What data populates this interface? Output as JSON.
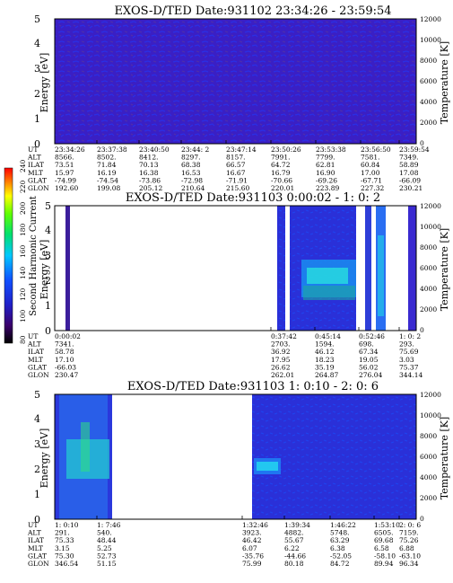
{
  "panels": [
    {
      "title": "EXOS-D/TED   Date:931102  23:34:26 - 23:59:54",
      "y_left_label": "Energy [eV]",
      "y_left_ticks": [
        "0",
        "1",
        "2",
        "3",
        "4",
        "5"
      ],
      "y_right_label": "Temperature [K]",
      "y_right_ticks": [
        "0",
        "2000",
        "4000",
        "6000",
        "8000",
        "10000",
        "12000"
      ],
      "footer_labels": [
        "UT",
        "ALT",
        "ILAT",
        "MLT",
        "GLAT",
        "GLON"
      ],
      "footer_cols": [
        [
          "23:34:26",
          "8566.",
          "73.51",
          "15.97",
          "-74.99",
          "192.60"
        ],
        [
          "23:37:38",
          "8502.",
          "71.84",
          "16.19",
          "-74.54",
          "199.08"
        ],
        [
          "23:40:50",
          "8412.",
          "70.13",
          "16.38",
          "-73.86",
          "205.12"
        ],
        [
          "23:44: 2",
          "8297.",
          "68.38",
          "16.53",
          "-72.98",
          "210.64"
        ],
        [
          "23:47:14",
          "8157.",
          "66.57",
          "16.67",
          "-71.91",
          "215.60"
        ],
        [
          "23:50:26",
          "7991.",
          "64.72",
          "16.79",
          "-70.66",
          "220.01"
        ],
        [
          "23:53:38",
          "7799.",
          "62.81",
          "16.90",
          "-69.26",
          "223.89"
        ],
        [
          "23:56:50",
          "7581.",
          "60.84",
          "17.00",
          "-67.71",
          "227.32"
        ],
        [
          "23:59:54",
          "7349.",
          "58.89",
          "17.08",
          "-66.09",
          "230.21"
        ]
      ]
    },
    {
      "title": "EXOS-D/TED   Date:931103  0:00:02 - 1: 0: 2",
      "y_left_label": "Energy [eV]",
      "y_left_ticks": [
        "0",
        "1",
        "2",
        "3",
        "4",
        "5"
      ],
      "y_right_label": "Temperature [K]",
      "y_right_ticks": [
        "0",
        "2000",
        "4000",
        "6000",
        "8000",
        "10000",
        "12000"
      ],
      "footer_labels": [
        "UT",
        "ALT",
        "ILAT",
        "MLT",
        "GLAT",
        "GLON"
      ],
      "footer_cols": [
        [
          "0:00:02",
          "7341.",
          "58.78",
          "17.10",
          "-66.03",
          "230.47"
        ],
        [
          "0:37:42",
          "2703.",
          "36.92",
          "17.95",
          "26.62",
          "262.01"
        ],
        [
          "0:45:14",
          "1594.",
          "46.12",
          "18.23",
          "35.19",
          "264.87"
        ],
        [
          "0:52:46",
          "698.",
          "67.34",
          "19.05",
          "56.02",
          "276.04"
        ],
        [
          "1: 0: 2",
          "293.",
          "75.69",
          "3.03",
          "75.37",
          "344.14"
        ]
      ]
    },
    {
      "title": "EXOS-D/TED   Date:931103  1: 0:10 - 2: 0: 6",
      "y_left_label": "Energy [eV]",
      "y_left_ticks": [
        "0",
        "1",
        "2",
        "3",
        "4",
        "5"
      ],
      "y_right_label": "Temperature [K]",
      "y_right_ticks": [
        "0",
        "2000",
        "4000",
        "6000",
        "8000",
        "10000",
        "12000"
      ],
      "footer_labels": [
        "UT",
        "ALT",
        "ILAT",
        "MLT",
        "GLAT",
        "GLON"
      ],
      "footer_cols": [
        [
          "1: 0:10",
          "291.",
          "75.33",
          "3.15",
          "75.30",
          "346.54"
        ],
        [
          "1: 7:46",
          "540.",
          "48.44",
          "5.25",
          "52.73",
          "51.15"
        ],
        [
          "1:32:46",
          "3923.",
          "46.42",
          "6.07",
          "-35.76",
          "75.99"
        ],
        [
          "1:39:34",
          "4882.",
          "55.67",
          "6.22",
          "-44.66",
          "80.18"
        ],
        [
          "1:46:22",
          "5748.",
          "63.29",
          "6.38",
          "-52.05",
          "84.72"
        ],
        [
          "1:53:10",
          "6505.",
          "69.68",
          "6.58",
          "-58.10",
          "89.94"
        ],
        [
          "2: 0: 6",
          "7159.",
          "75.26",
          "6.88",
          "-63.10",
          "96.34"
        ]
      ]
    }
  ],
  "colorbar": {
    "label": "Second Harmonic Current",
    "ticks": [
      "80",
      "100",
      "120",
      "140",
      "160",
      "180",
      "200",
      "220",
      "240"
    ]
  },
  "chart_data": [
    {
      "type": "heatmap",
      "title": "EXOS-D/TED   Date:931102  23:34:26 - 23:59:54",
      "x_ticks": [
        "23:34:26",
        "23:37:38",
        "23:40:50",
        "23:44: 2",
        "23:47:14",
        "23:50:26",
        "23:53:38",
        "23:56:50",
        "23:59:54"
      ],
      "ylabel": "Energy [eV]",
      "ylim": [
        0,
        5
      ],
      "ylabel_right": "Temperature [K]",
      "ylim_right": [
        0,
        12000
      ],
      "color_label": "Second Harmonic Current",
      "color_range": [
        80,
        240
      ],
      "data_coverage": "continuous",
      "dominant_level": "low (dark blue)"
    },
    {
      "type": "heatmap",
      "title": "EXOS-D/TED   Date:931103  0:00:02 - 1: 0: 2",
      "x_ticks": [
        "0:00:02",
        "0:37:42",
        "0:45:14",
        "0:52:46",
        "1: 0: 2"
      ],
      "ylabel": "Energy [eV]",
      "ylim": [
        0,
        5
      ],
      "ylabel_right": "Temperature [K]",
      "ylim_right": [
        0,
        12000
      ],
      "color_label": "Second Harmonic Current",
      "color_range": [
        80,
        240
      ],
      "data_coverage": "gaps",
      "enhanced_region": "around 2 eV near 0:40-0:50"
    },
    {
      "type": "heatmap",
      "title": "EXOS-D/TED   Date:931103  1: 0:10 - 2: 0: 6",
      "x_ticks": [
        "1: 0:10",
        "1: 7:46",
        "1:32:46",
        "1:39:34",
        "1:46:22",
        "1:53:10",
        "2: 0: 6"
      ],
      "ylabel": "Energy [eV]",
      "ylim": [
        0,
        5
      ],
      "ylabel_right": "Temperature [K]",
      "ylim_right": [
        0,
        12000
      ],
      "color_label": "Second Harmonic Current",
      "color_range": [
        80,
        240
      ],
      "data_coverage": "gaps",
      "enhanced_region": "around 1.5-2 eV near 1:32-1:39"
    }
  ]
}
